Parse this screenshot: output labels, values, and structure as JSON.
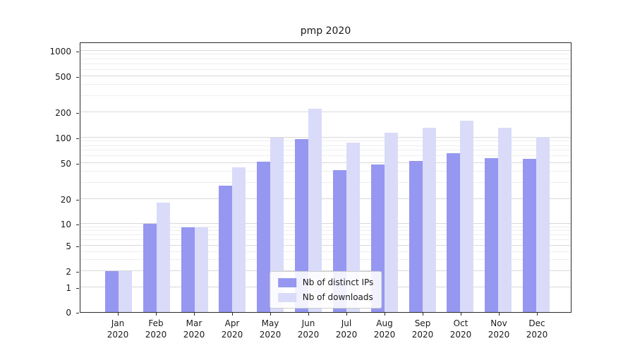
{
  "chart_data": {
    "type": "bar",
    "title": "pmp 2020",
    "x_tick_labels": [
      [
        "Jan",
        "2020"
      ],
      [
        "Feb",
        "2020"
      ],
      [
        "Mar",
        "2020"
      ],
      [
        "Apr",
        "2020"
      ],
      [
        "May",
        "2020"
      ],
      [
        "Jun",
        "2020"
      ],
      [
        "Jul",
        "2020"
      ],
      [
        "Aug",
        "2020"
      ],
      [
        "Sep",
        "2020"
      ],
      [
        "Oct",
        "2020"
      ],
      [
        "Nov",
        "2020"
      ],
      [
        "Dec",
        "2020"
      ]
    ],
    "series": [
      {
        "name": "Nb of distinct IPs",
        "color": "#9597f0",
        "values": [
          2,
          10,
          9,
          28,
          52,
          97,
          42,
          48,
          53,
          65,
          57,
          56
        ]
      },
      {
        "name": "Nb of downloads",
        "color": "#d9dbf9",
        "values": [
          2,
          18,
          9,
          45,
          100,
          220,
          88,
          115,
          130,
          160,
          130,
          102
        ]
      }
    ],
    "y_axis": {
      "scale": "symlog",
      "ticks": [
        0,
        1,
        2,
        5,
        10,
        20,
        50,
        100,
        200,
        500,
        1000
      ],
      "minor_ticks": [
        3,
        4,
        6,
        7,
        8,
        9,
        30,
        40,
        60,
        70,
        80,
        90,
        300,
        400,
        600,
        700,
        800,
        900
      ],
      "range": [
        0,
        1000
      ]
    },
    "grid": true,
    "legend_position": "lower center"
  }
}
